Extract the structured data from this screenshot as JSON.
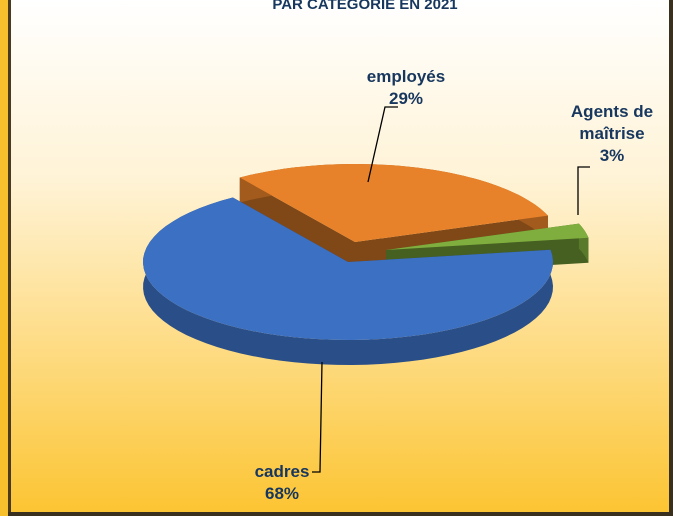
{
  "chart_data": {
    "type": "pie3d",
    "title": "PAR CATÉGORIE EN 2021",
    "categories": [
      "cadres",
      "employés",
      "Agents de maîtrise"
    ],
    "values": [
      68,
      29,
      3
    ],
    "value_labels": [
      "68%",
      "29%",
      "3%"
    ],
    "colors": [
      "#3c70c2",
      "#e8822a",
      "#7fae3e"
    ]
  }
}
